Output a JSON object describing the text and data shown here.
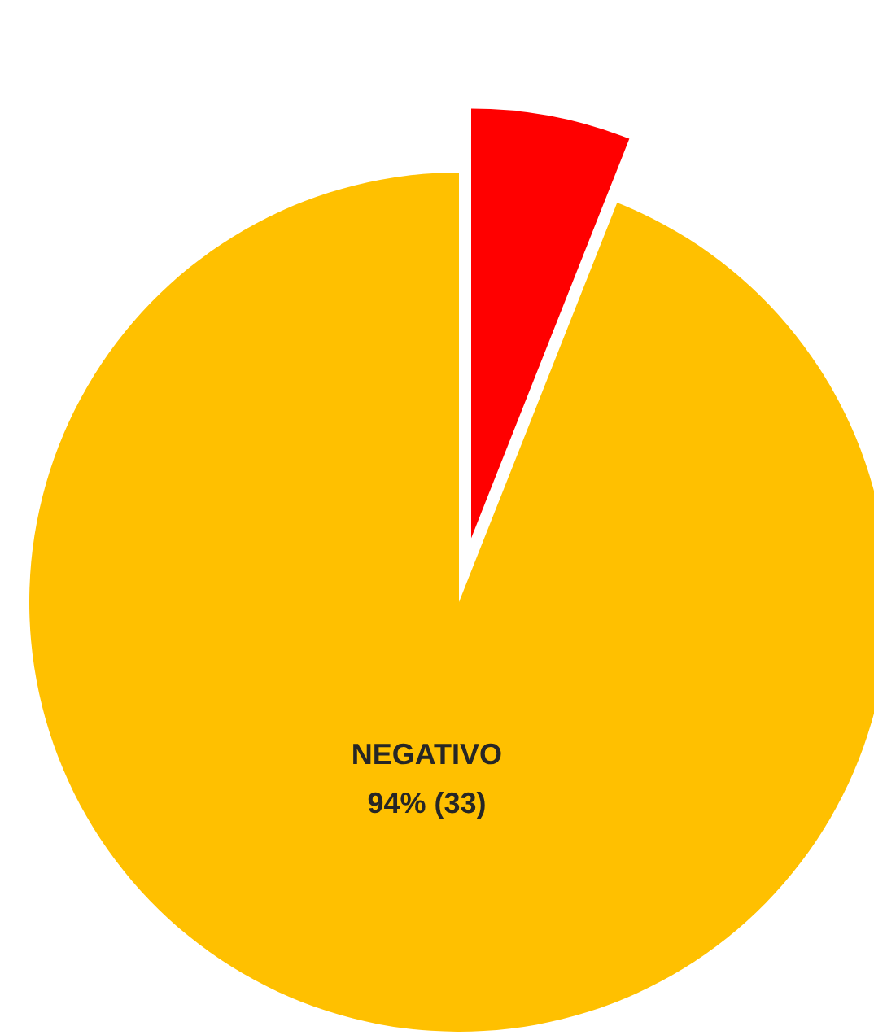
{
  "chart_data": {
    "type": "pie",
    "categories": [
      "NEGATIVO",
      null
    ],
    "values": [
      94,
      6
    ],
    "colors": [
      "#ffc000",
      "#ff0000"
    ],
    "value_labels": [
      "94% (33)",
      null
    ]
  }
}
